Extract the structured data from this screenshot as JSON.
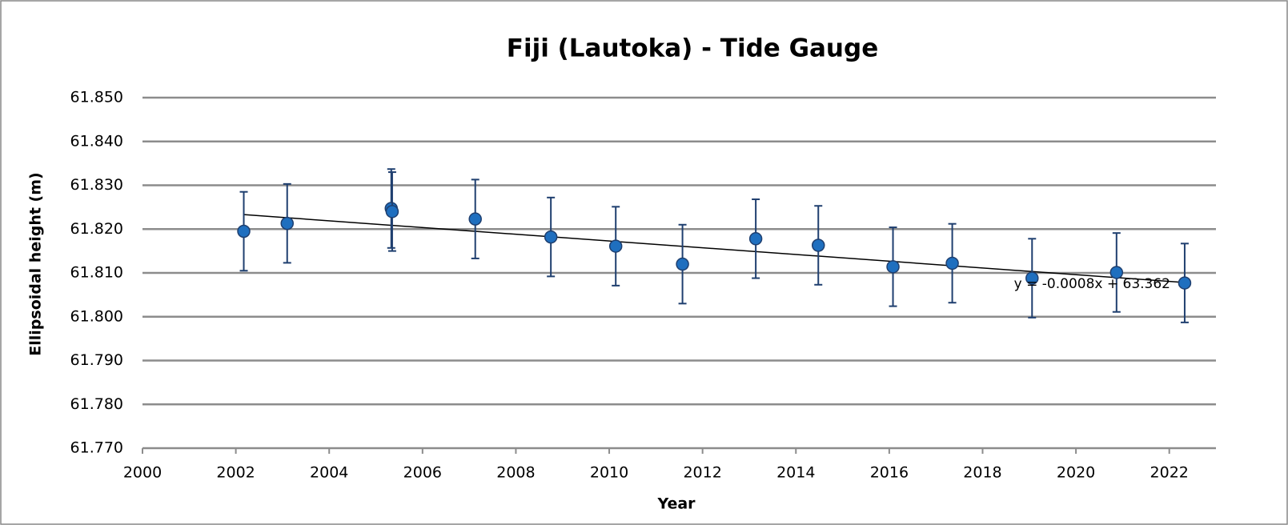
{
  "chart_data": {
    "type": "scatter",
    "title": "Fiji (Lautoka) - Tide Gauge",
    "x_label": "Year",
    "y_label": "Ellipsoidal height (m)",
    "series": [
      {
        "color": "#1f6fbf",
        "x": [
          2002.17,
          2003.1,
          2005.33,
          2005.35,
          2007.13,
          2008.75,
          2010.14,
          2011.57,
          2013.14,
          2014.48,
          2016.08,
          2017.35,
          2019.06,
          2020.87,
          2022.33
        ],
        "values": [
          61.8195,
          61.8213,
          61.8247,
          61.824,
          61.8223,
          61.8182,
          61.8161,
          61.812,
          61.8178,
          61.8163,
          61.8114,
          61.8122,
          61.8088,
          61.8101,
          61.8077
        ],
        "errors": [
          0.009,
          0.009,
          0.009,
          0.009,
          0.009,
          0.009,
          0.009,
          0.009,
          0.009,
          0.009,
          0.009,
          0.009,
          0.009,
          0.009,
          0.009
        ]
      }
    ],
    "trendline": {
      "x": [
        2002.17,
        2022.33
      ],
      "values": [
        61.8233,
        61.8078
      ],
      "label": "y = -0.0008x + 63.362"
    },
    "xlim": [
      2000,
      2023
    ],
    "xticks": [
      2000,
      2002,
      2004,
      2006,
      2008,
      2010,
      2012,
      2014,
      2016,
      2018,
      2020,
      2022
    ],
    "ylim": [
      61.77,
      61.85
    ],
    "yticks": [
      {
        "value": 61.77,
        "label": "61.770"
      },
      {
        "value": 61.78,
        "label": "61.780"
      },
      {
        "value": 61.79,
        "label": "61.790"
      },
      {
        "value": 61.8,
        "label": "61.800"
      },
      {
        "value": 61.81,
        "label": "61.810"
      },
      {
        "value": 61.82,
        "label": "61.820"
      },
      {
        "value": 61.83,
        "label": "61.830"
      },
      {
        "value": 61.84,
        "label": "61.840"
      },
      {
        "value": 61.85,
        "label": "61.850"
      }
    ],
    "grid": true
  }
}
